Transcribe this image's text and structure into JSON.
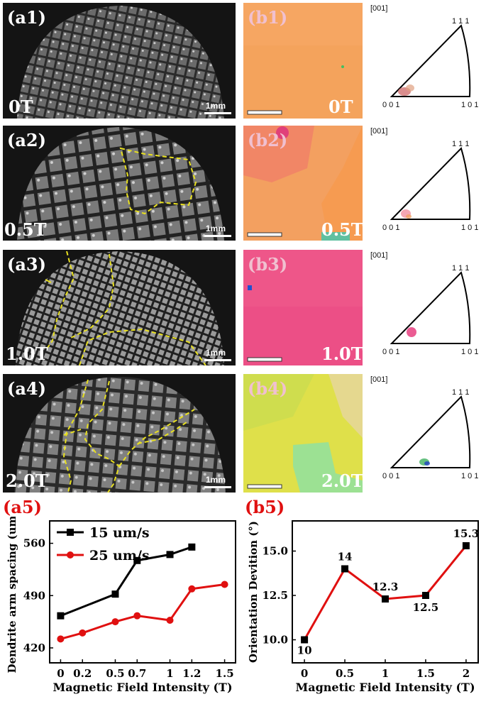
{
  "rows": [
    {
      "micro_label": "(a1)",
      "field": "0T",
      "scale": "1mm",
      "ebsd_label": "(b1)",
      "ipf_dir": "[001]"
    },
    {
      "micro_label": "(a2)",
      "field": "0.5T",
      "scale": "1mm",
      "ebsd_label": "(b2)",
      "ipf_dir": "[001]"
    },
    {
      "micro_label": "(a3)",
      "field": "1.0T",
      "scale": "1mm",
      "ebsd_label": "(b3)",
      "ipf_dir": "[001]"
    },
    {
      "micro_label": "(a4)",
      "field": "2.0T",
      "scale": "1mm",
      "ebsd_label": "(b4)",
      "ipf_dir": "[001]"
    }
  ],
  "ipf_corners": {
    "top": "1 1 1",
    "left": "0 0 1",
    "right": "1 0 1"
  },
  "colors": {
    "black_series": "#000000",
    "red_series": "#e01010",
    "dashed": "#e8e020"
  },
  "chart_data": [
    {
      "id": "a5",
      "panel_label": "(a5)",
      "type": "line",
      "xlabel": "Magnetic Field Intensity (T)",
      "ylabel": "Dendrite arm spacing (um)",
      "xlim": [
        -0.1,
        1.6
      ],
      "ylim": [
        400,
        590
      ],
      "xticks": [
        0,
        0.2,
        0.5,
        0.7,
        1,
        1.2,
        1.5
      ],
      "xtick_labels": [
        "0",
        "0.2",
        "0.5",
        "0.7",
        "1",
        "1.2",
        "1.5"
      ],
      "yticks": [
        420,
        490,
        560
      ],
      "series": [
        {
          "name": "15 um/s",
          "color": "#000000",
          "marker": "square",
          "x": [
            0,
            0.5,
            0.7,
            1,
            1.2
          ],
          "y": [
            463,
            492,
            537,
            545,
            555
          ]
        },
        {
          "name": "25 um/s",
          "color": "#e01010",
          "marker": "circle",
          "x": [
            0,
            0.2,
            0.5,
            0.7,
            1,
            1.2,
            1.5
          ],
          "y": [
            432,
            440,
            455,
            463,
            457,
            499,
            505
          ]
        }
      ]
    },
    {
      "id": "b5",
      "panel_label": "(b5)",
      "type": "line",
      "xlabel": "Magnetic Field Intensity (T)",
      "ylabel": "Orientation Devition (°)",
      "xlim": [
        -0.15,
        2.15
      ],
      "ylim": [
        8.7,
        16.7
      ],
      "xticks": [
        0,
        0.5,
        1,
        1.5,
        2
      ],
      "xtick_labels": [
        "0",
        "0.5",
        "1",
        "1.5",
        "2"
      ],
      "yticks": [
        10.0,
        12.5,
        15.0
      ],
      "ytick_labels": [
        "10.0",
        "12.5",
        "15.0"
      ],
      "series": [
        {
          "name": "Orientation Devition",
          "color": "#e01010",
          "marker": "square",
          "x": [
            0,
            0.5,
            1,
            1.5,
            2
          ],
          "y": [
            10,
            14,
            12.3,
            12.5,
            15.3
          ]
        }
      ],
      "annotations": [
        "10",
        "14",
        "12.3",
        "12.5",
        "15.3"
      ]
    }
  ]
}
